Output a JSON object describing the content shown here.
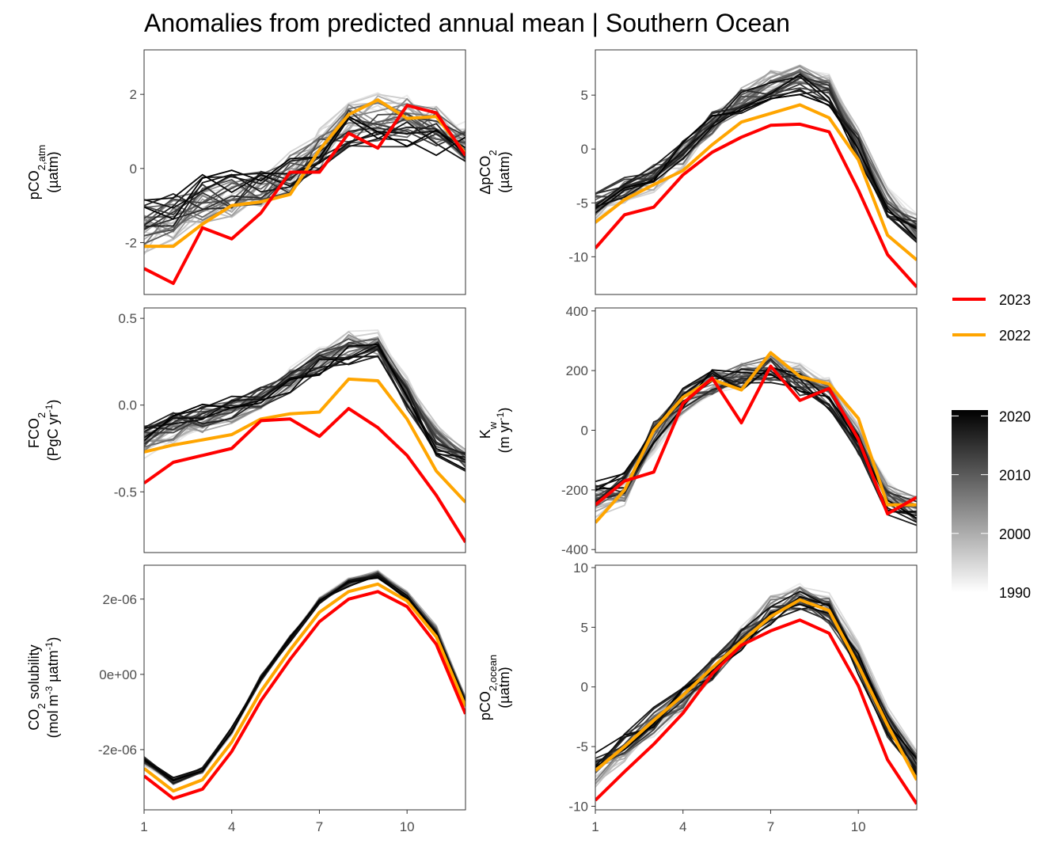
{
  "title": "Anomalies from predicted annual mean | Southern Ocean",
  "legend": {
    "highlight": [
      {
        "label": "2023",
        "color": "#ff0000"
      },
      {
        "label": "2022",
        "color": "#ffa500"
      }
    ],
    "colorbar": {
      "ticks": [
        "2020",
        "2010",
        "2000",
        "1990"
      ],
      "range": [
        1990,
        2021
      ],
      "low_color": "#ffffff",
      "high_color": "#000000"
    }
  },
  "chart_data": [
    {
      "type": "line",
      "id": "pco2atm",
      "ylabel_line1": "pCO",
      "ylabel_sub": "2,atm",
      "ylabel_sup": "",
      "ylabel_line1_tail": "",
      "ylabel_line2": "(µatm)",
      "ylim": [
        -3.4,
        3.2
      ],
      "yticks": [
        {
          "value": -2,
          "label": "-2"
        },
        {
          "value": 0,
          "label": "0"
        },
        {
          "value": 2,
          "label": "2"
        }
      ],
      "x": [
        1,
        2,
        3,
        4,
        5,
        6,
        7,
        8,
        9,
        10,
        11,
        12
      ],
      "background": {
        "base": [
          -1.6,
          -1.3,
          -0.9,
          -0.7,
          -0.5,
          -0.1,
          0.4,
          1.2,
          1.3,
          1.3,
          1.1,
          0.6
        ],
        "spread": 0.75
      },
      "highlight": [
        {
          "name": "2023",
          "values": [
            -2.7,
            -3.1,
            -1.6,
            -1.9,
            -1.2,
            -0.1,
            -0.1,
            0.95,
            0.55,
            1.7,
            1.5,
            0.35
          ]
        },
        {
          "name": "2022",
          "values": [
            -2.1,
            -2.1,
            -1.5,
            -1.0,
            -0.9,
            -0.7,
            0.5,
            1.45,
            1.85,
            1.35,
            1.4,
            0.4
          ]
        }
      ]
    },
    {
      "type": "line",
      "id": "dpco2",
      "ylabel_line1": "ΔpCO",
      "ylabel_sub": "2",
      "ylabel_sup": "",
      "ylabel_line1_tail": "",
      "ylabel_line2": "(µatm)",
      "ylim": [
        -13.5,
        9.2
      ],
      "yticks": [
        {
          "value": -10,
          "label": "-10"
        },
        {
          "value": -5,
          "label": "-5"
        },
        {
          "value": 0,
          "label": "0"
        },
        {
          "value": 5,
          "label": "5"
        }
      ],
      "x": [
        1,
        2,
        3,
        4,
        5,
        6,
        7,
        8,
        9,
        10,
        11,
        12
      ],
      "background": {
        "base": [
          -5.5,
          -4.0,
          -2.5,
          -0.5,
          2.5,
          4.5,
          6.0,
          6.5,
          5.5,
          0.5,
          -5.0,
          -7.5
        ],
        "spread": 1.6
      },
      "highlight": [
        {
          "name": "2023",
          "values": [
            -9.2,
            -6.1,
            -5.4,
            -2.4,
            -0.3,
            1.1,
            2.2,
            2.3,
            1.6,
            -3.8,
            -9.8,
            -12.8
          ]
        },
        {
          "name": "2022",
          "values": [
            -6.8,
            -4.7,
            -3.3,
            -2.0,
            0.4,
            2.5,
            3.3,
            4.1,
            2.9,
            -1.0,
            -8.0,
            -10.3
          ]
        }
      ]
    },
    {
      "type": "line",
      "id": "fco2",
      "ylabel_line1": "FCO",
      "ylabel_sub": "2",
      "ylabel_sup": "-1",
      "ylabel_line1_tail": "",
      "ylabel_line2": "(PgC yr",
      "ylabel_line2_tail": ")",
      "ylim": [
        -0.85,
        0.56
      ],
      "yticks": [
        {
          "value": -0.5,
          "label": "-0.5"
        },
        {
          "value": 0,
          "label": "0.0"
        },
        {
          "value": 0.5,
          "label": "0.5"
        }
      ],
      "x": [
        1,
        2,
        3,
        4,
        5,
        6,
        7,
        8,
        9,
        10,
        11,
        12
      ],
      "background": {
        "base": [
          -0.2,
          -0.13,
          -0.08,
          -0.03,
          0.04,
          0.14,
          0.25,
          0.33,
          0.33,
          0.06,
          -0.2,
          -0.32
        ],
        "spread": 0.1
      },
      "highlight": [
        {
          "name": "2023",
          "values": [
            -0.45,
            -0.33,
            -0.29,
            -0.25,
            -0.09,
            -0.08,
            -0.18,
            -0.02,
            -0.13,
            -0.29,
            -0.52,
            -0.79
          ]
        },
        {
          "name": "2022",
          "values": [
            -0.27,
            -0.23,
            -0.2,
            -0.17,
            -0.08,
            -0.05,
            -0.04,
            0.15,
            0.14,
            -0.08,
            -0.38,
            -0.56
          ]
        }
      ]
    },
    {
      "type": "line",
      "id": "kw",
      "ylabel_line1": "K",
      "ylabel_sub": "w",
      "ylabel_sup": "-1",
      "ylabel_line1_tail": "",
      "ylabel_line2": "(m yr",
      "ylabel_line2_tail": ")",
      "ylim": [
        -410,
        410
      ],
      "yticks": [
        {
          "value": -400,
          "label": "-400"
        },
        {
          "value": -200,
          "label": "-200"
        },
        {
          "value": 0,
          "label": "0"
        },
        {
          "value": 200,
          "label": "200"
        },
        {
          "value": 400,
          "label": "400"
        }
      ],
      "x": [
        1,
        2,
        3,
        4,
        5,
        6,
        7,
        8,
        9,
        10,
        11,
        12
      ],
      "background": {
        "base": [
          -230,
          -200,
          -20,
          100,
          160,
          180,
          210,
          170,
          120,
          -30,
          -230,
          -270
        ],
        "spread": 60
      },
      "highlight": [
        {
          "name": "2023",
          "values": [
            -250,
            -170,
            -140,
            90,
            175,
            25,
            215,
            100,
            140,
            -30,
            -280,
            -225
          ]
        },
        {
          "name": "2022",
          "values": [
            -310,
            -200,
            0,
            110,
            170,
            135,
            260,
            180,
            155,
            40,
            -250,
            -250
          ]
        }
      ]
    },
    {
      "type": "line",
      "id": "solubility",
      "ylabel_line1": "CO",
      "ylabel_sub": "2",
      "ylabel_sup": "",
      "ylabel_line1_tail": " solubility",
      "ylabel_line2": "(mol m",
      "ylabel_line2_mid_sup": "-3",
      "ylabel_line2_mid": " µatm",
      "ylabel_line2_sup2": "-1",
      "ylabel_line2_tail": ")",
      "ylim": [
        -3.6e-06,
        2.9e-06
      ],
      "yticks": [
        {
          "value": -2e-06,
          "label": "-2e-06"
        },
        {
          "value": 0,
          "label": "0e+00"
        },
        {
          "value": 2e-06,
          "label": "2e-06"
        }
      ],
      "x": [
        1,
        2,
        3,
        4,
        5,
        6,
        7,
        8,
        9,
        10,
        11,
        12
      ],
      "background": {
        "base": [
          -2.3e-06,
          -2.85e-06,
          -2.55e-06,
          -1.5e-06,
          -1e-07,
          9.5e-07,
          1.95e-06,
          2.45e-06,
          2.65e-06,
          2.1e-06,
          1.2e-06,
          -7e-07
        ],
        "spread": 1.2e-07
      },
      "highlight": [
        {
          "name": "2023",
          "values": [
            -2.7e-06,
            -3.3e-06,
            -3.05e-06,
            -2.05e-06,
            -7e-07,
            4e-07,
            1.4e-06,
            2e-06,
            2.2e-06,
            1.8e-06,
            8e-07,
            -1.05e-06
          ]
        },
        {
          "name": "2022",
          "values": [
            -2.5e-06,
            -3.1e-06,
            -2.8e-06,
            -1.8e-06,
            -4.5e-07,
            6.5e-07,
            1.65e-06,
            2.2e-06,
            2.4e-06,
            1.95e-06,
            1e-06,
            -8.5e-07
          ]
        }
      ]
    },
    {
      "type": "line",
      "id": "pco2ocean",
      "ylabel_line1": "pCO",
      "ylabel_sub": "2,ocean",
      "ylabel_sup": "",
      "ylabel_line1_tail": "",
      "ylabel_line2": "(µatm)",
      "ylim": [
        -10.3,
        10.2
      ],
      "yticks": [
        {
          "value": -10,
          "label": "-10"
        },
        {
          "value": -5,
          "label": "-5"
        },
        {
          "value": 0,
          "label": "0"
        },
        {
          "value": 5,
          "label": "5"
        },
        {
          "value": 10,
          "label": "10"
        }
      ],
      "xticks": [
        1,
        4,
        7,
        10
      ],
      "x": [
        1,
        2,
        3,
        4,
        5,
        6,
        7,
        8,
        9,
        10,
        11,
        12
      ],
      "background": {
        "base": [
          -7.0,
          -5.0,
          -3.0,
          -1.0,
          1.5,
          4.0,
          6.5,
          7.5,
          6.5,
          2.5,
          -3.0,
          -6.5
        ],
        "spread": 1.4
      },
      "highlight": [
        {
          "name": "2023",
          "values": [
            -9.5,
            -7.1,
            -4.8,
            -2.2,
            1.1,
            3.5,
            4.7,
            5.6,
            4.5,
            0.1,
            -6.1,
            -9.8
          ]
        },
        {
          "name": "2022",
          "values": [
            -7.0,
            -5.0,
            -2.8,
            -0.7,
            1.6,
            3.8,
            5.9,
            7.3,
            6.4,
            1.8,
            -3.2,
            -7.8
          ]
        }
      ]
    }
  ],
  "xaxis": {
    "ticks": [
      {
        "value": 1,
        "label": "1"
      },
      {
        "value": 4,
        "label": "4"
      },
      {
        "value": 7,
        "label": "7"
      },
      {
        "value": 10,
        "label": "10"
      }
    ],
    "xlim": [
      1,
      12
    ]
  }
}
